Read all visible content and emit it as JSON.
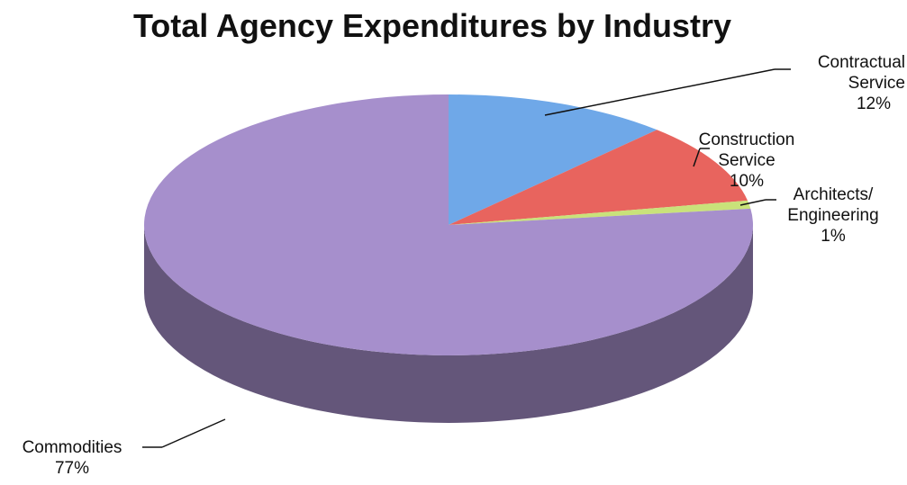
{
  "chart_data": {
    "type": "pie3d",
    "title": "Total Agency Expenditures by Industry",
    "categories": [
      "Contractual Service",
      "Construction Service",
      "Architects/ Engineering",
      "Commodities"
    ],
    "values": [
      12,
      10,
      1,
      77
    ],
    "value_labels": [
      "12%",
      "10%",
      "1%",
      "77%"
    ],
    "colors": [
      "#6fa8e8",
      "#e8645e",
      "#c9e27a",
      "#a68fcc"
    ]
  }
}
